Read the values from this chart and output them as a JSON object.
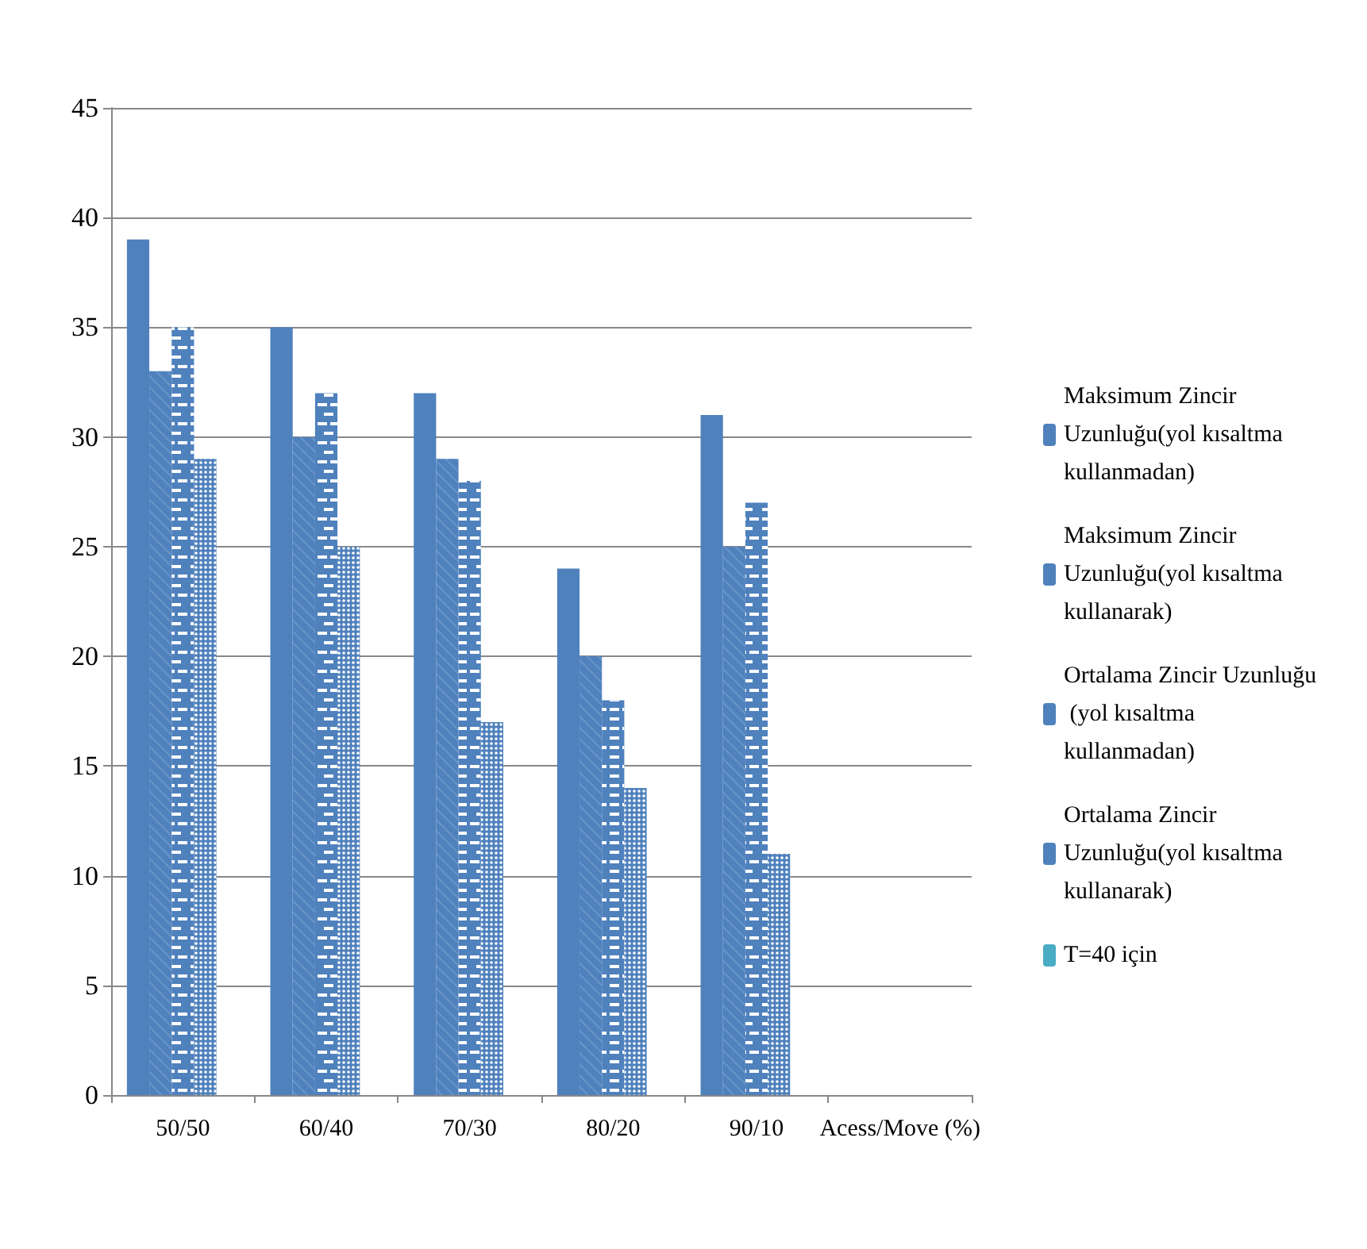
{
  "chart_data": {
    "type": "bar",
    "xlabel": "Acess/Move (%)",
    "categories": [
      "50/50",
      "60/40",
      "70/30",
      "80/20",
      "90/10"
    ],
    "series": [
      {
        "name": "Maksimum Zincir Uzunluğu(yol kısaltma kullanmadan)",
        "color": "#4f81bd",
        "values": [
          39,
          35,
          32,
          24,
          31
        ]
      },
      {
        "name": "Maksimum Zincir Uzunluğu(yol kısaltma kullanarak)",
        "color": "#4f81bd",
        "values": [
          33,
          30,
          29,
          20,
          25
        ]
      },
      {
        "name": "Ortalama Zincir Uzunluğu (yol kısaltma kullanmadan)",
        "color": "#4f81bd",
        "values": [
          35,
          32,
          28,
          18,
          27
        ]
      },
      {
        "name": "Ortalama Zincir Uzunluğu(yol kısaltma kullanarak)",
        "color": "#4f81bd",
        "values": [
          29,
          25,
          17,
          14,
          11
        ]
      },
      {
        "name": "T=40 için",
        "color": "#4bacc6",
        "values": [
          null,
          null,
          null,
          null,
          null
        ]
      }
    ],
    "ylim": [
      0,
      45
    ],
    "yticks": [
      0,
      5,
      10,
      15,
      20,
      25,
      30,
      35,
      40,
      45
    ],
    "grid": "y",
    "legend": "right"
  }
}
